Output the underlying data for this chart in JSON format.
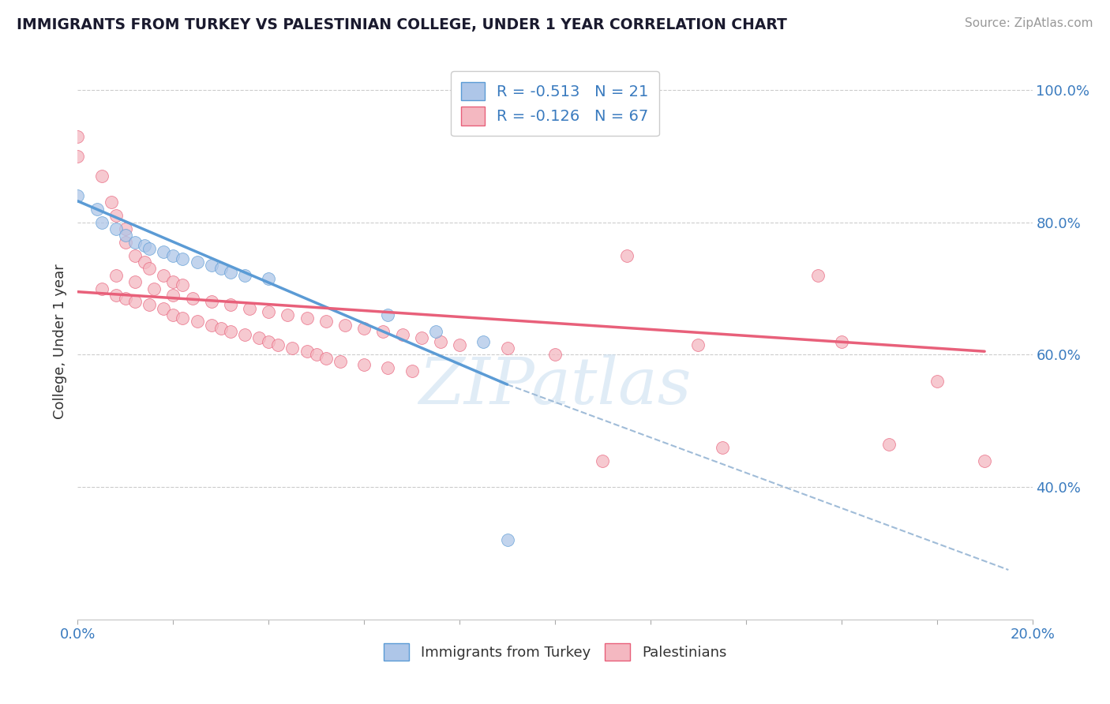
{
  "title": "IMMIGRANTS FROM TURKEY VS PALESTINIAN COLLEGE, UNDER 1 YEAR CORRELATION CHART",
  "source": "Source: ZipAtlas.com",
  "ylabel": "College, Under 1 year",
  "xlim": [
    0.0,
    0.2
  ],
  "ylim": [
    0.2,
    1.04
  ],
  "legend_entries": [
    {
      "label": "R = -0.513   N = 21",
      "color": "#aec6e8"
    },
    {
      "label": "R = -0.126   N = 67",
      "color": "#f4b8c1"
    }
  ],
  "turkey_scatter": [
    [
      0.0,
      0.84
    ],
    [
      0.004,
      0.82
    ],
    [
      0.005,
      0.8
    ],
    [
      0.008,
      0.79
    ],
    [
      0.01,
      0.78
    ],
    [
      0.012,
      0.77
    ],
    [
      0.014,
      0.765
    ],
    [
      0.015,
      0.76
    ],
    [
      0.018,
      0.755
    ],
    [
      0.02,
      0.75
    ],
    [
      0.022,
      0.745
    ],
    [
      0.025,
      0.74
    ],
    [
      0.028,
      0.735
    ],
    [
      0.03,
      0.73
    ],
    [
      0.032,
      0.725
    ],
    [
      0.035,
      0.72
    ],
    [
      0.04,
      0.715
    ],
    [
      0.065,
      0.66
    ],
    [
      0.075,
      0.635
    ],
    [
      0.085,
      0.62
    ],
    [
      0.09,
      0.32
    ]
  ],
  "turkey_line": [
    [
      0.0,
      0.832
    ],
    [
      0.09,
      0.555
    ]
  ],
  "turkey_line_ext": [
    [
      0.09,
      0.555
    ],
    [
      0.195,
      0.275
    ]
  ],
  "palestine_scatter": [
    [
      0.0,
      0.93
    ],
    [
      0.0,
      0.9
    ],
    [
      0.005,
      0.87
    ],
    [
      0.007,
      0.83
    ],
    [
      0.008,
      0.81
    ],
    [
      0.01,
      0.79
    ],
    [
      0.01,
      0.77
    ],
    [
      0.012,
      0.75
    ],
    [
      0.014,
      0.74
    ],
    [
      0.015,
      0.73
    ],
    [
      0.018,
      0.72
    ],
    [
      0.02,
      0.71
    ],
    [
      0.022,
      0.705
    ],
    [
      0.005,
      0.7
    ],
    [
      0.008,
      0.69
    ],
    [
      0.01,
      0.685
    ],
    [
      0.012,
      0.68
    ],
    [
      0.015,
      0.675
    ],
    [
      0.018,
      0.67
    ],
    [
      0.02,
      0.66
    ],
    [
      0.022,
      0.655
    ],
    [
      0.025,
      0.65
    ],
    [
      0.028,
      0.645
    ],
    [
      0.03,
      0.64
    ],
    [
      0.032,
      0.635
    ],
    [
      0.035,
      0.63
    ],
    [
      0.038,
      0.625
    ],
    [
      0.04,
      0.62
    ],
    [
      0.042,
      0.615
    ],
    [
      0.045,
      0.61
    ],
    [
      0.048,
      0.605
    ],
    [
      0.05,
      0.6
    ],
    [
      0.052,
      0.595
    ],
    [
      0.055,
      0.59
    ],
    [
      0.06,
      0.585
    ],
    [
      0.065,
      0.58
    ],
    [
      0.07,
      0.575
    ],
    [
      0.008,
      0.72
    ],
    [
      0.012,
      0.71
    ],
    [
      0.016,
      0.7
    ],
    [
      0.02,
      0.69
    ],
    [
      0.024,
      0.685
    ],
    [
      0.028,
      0.68
    ],
    [
      0.032,
      0.675
    ],
    [
      0.036,
      0.67
    ],
    [
      0.04,
      0.665
    ],
    [
      0.044,
      0.66
    ],
    [
      0.048,
      0.655
    ],
    [
      0.052,
      0.65
    ],
    [
      0.056,
      0.645
    ],
    [
      0.06,
      0.64
    ],
    [
      0.064,
      0.635
    ],
    [
      0.068,
      0.63
    ],
    [
      0.072,
      0.625
    ],
    [
      0.076,
      0.62
    ],
    [
      0.08,
      0.615
    ],
    [
      0.09,
      0.61
    ],
    [
      0.1,
      0.6
    ],
    [
      0.115,
      0.75
    ],
    [
      0.13,
      0.615
    ],
    [
      0.135,
      0.46
    ],
    [
      0.155,
      0.72
    ],
    [
      0.16,
      0.62
    ],
    [
      0.17,
      0.465
    ],
    [
      0.18,
      0.56
    ],
    [
      0.19,
      0.44
    ],
    [
      0.11,
      0.44
    ]
  ],
  "palestine_line": [
    [
      0.0,
      0.695
    ],
    [
      0.19,
      0.605
    ]
  ],
  "turkey_color": "#5b9bd5",
  "turkey_scatter_color": "#aec6e8",
  "palestine_color": "#e8607a",
  "palestine_scatter_color": "#f4b8c1",
  "background_color": "#ffffff",
  "grid_color": "#cccccc",
  "dashed_ext_color": "#a0bcd8",
  "watermark": "ZIPatlas",
  "title_color": "#1a1a2e",
  "source_color": "#999999",
  "axis_color": "#3a7bbf"
}
